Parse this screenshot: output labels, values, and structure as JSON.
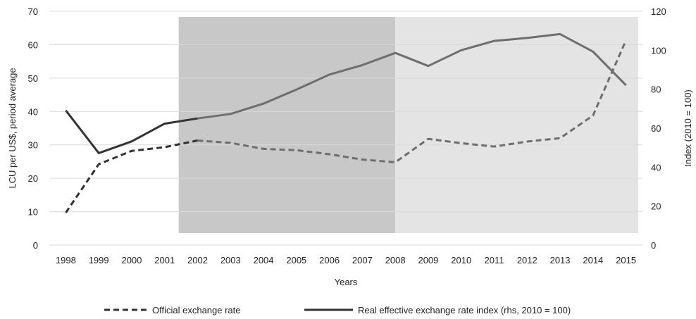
{
  "chart_data": {
    "type": "line",
    "title": "",
    "xlabel": "Years",
    "ylabel": "LCU per US$, period average",
    "y2label": "Index (2010 = 100)",
    "ylim": [
      0,
      70
    ],
    "y2lim": [
      0,
      120
    ],
    "yticks": [
      "0",
      "10",
      "20",
      "30",
      "40",
      "50",
      "60",
      "70"
    ],
    "y2ticks": [
      "0",
      "20",
      "40",
      "60",
      "80",
      "100",
      "120"
    ],
    "categories": [
      "1998",
      "1999",
      "2000",
      "2001",
      "2002",
      "2003",
      "2004",
      "2005",
      "2006",
      "2007",
      "2008",
      "2009",
      "2010",
      "2011",
      "2012",
      "2013",
      "2014",
      "2015"
    ],
    "grid": true,
    "legend_position": "bottom",
    "shaded_periods": [
      {
        "from": "2002",
        "to": "2008",
        "color": "#c8c8c8"
      },
      {
        "from": "2008",
        "to": "2015",
        "color": "#e4e4e4"
      }
    ],
    "series": [
      {
        "name": "Official exchange rate",
        "axis": "left",
        "style": "dashed",
        "values": [
          9.7,
          24.2,
          28.2,
          29.3,
          31.3,
          30.6,
          28.8,
          28.4,
          27.2,
          25.6,
          24.8,
          31.8,
          30.5,
          29.5,
          31.0,
          32.0,
          38.8,
          61.3
        ]
      },
      {
        "name": "Real effective exchange rate index (rhs, 2010 = 100)",
        "axis": "right",
        "style": "solid",
        "values": [
          69.1,
          47.2,
          53.2,
          62.3,
          65.0,
          67.3,
          72.6,
          79.8,
          87.5,
          92.4,
          98.6,
          91.9,
          100.0,
          104.8,
          106.3,
          108.3,
          99.3,
          82.0
        ]
      }
    ],
    "colors": {
      "grid": "#d9d9d9",
      "text": "#222222",
      "line_dark": "#333333",
      "line_muted": "#6e6e6e"
    }
  }
}
